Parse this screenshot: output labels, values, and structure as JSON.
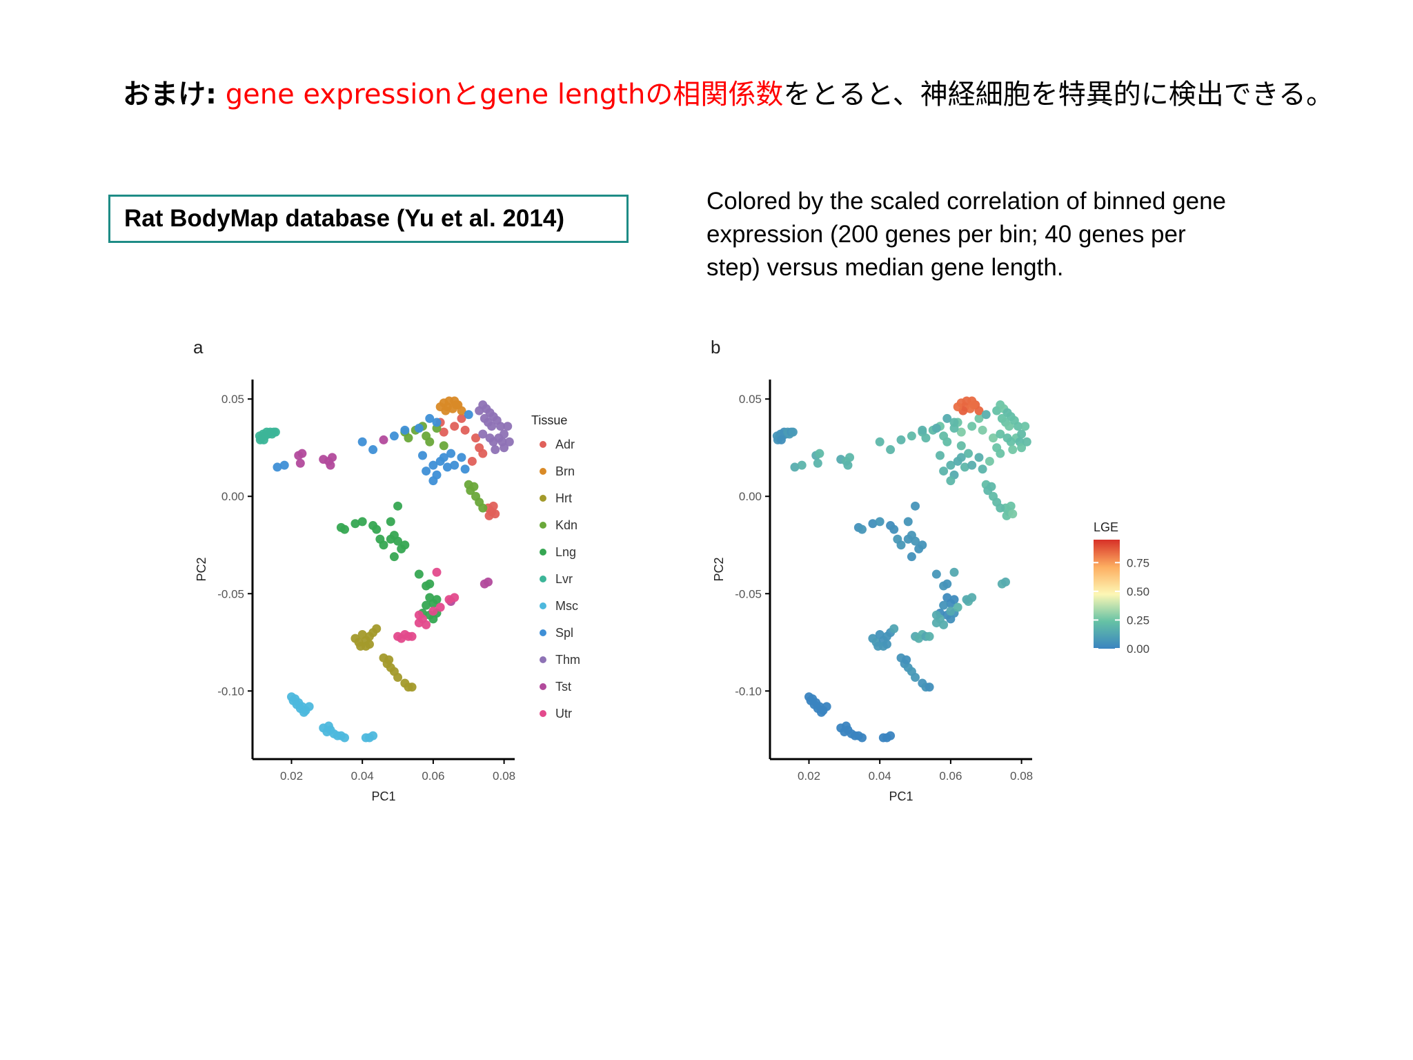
{
  "title": {
    "prefix": "おまけ:",
    "highlight": "gene expressionとgene lengthの相関係数",
    "suffix": "をとると、神経細胞を特異的に検出できる。"
  },
  "source_box": {
    "label": "Rat BodyMap database (Yu et al. 2014)"
  },
  "caption": {
    "text": "Colored by the scaled correlation of binned gene expression (200 genes per bin; 40 genes per step) versus median gene length."
  },
  "colors": {
    "title_highlight": "#ff0000",
    "box_border": "#1e8c86"
  },
  "chart_data": [
    {
      "panel": "a",
      "type": "scatter",
      "xlabel": "PC1",
      "ylabel": "PC2",
      "xlim": [
        0.009,
        0.083
      ],
      "ylim": [
        -0.135,
        0.06
      ],
      "xticks": [
        0.02,
        0.04,
        0.06,
        0.08
      ],
      "xtick_labels": [
        "0.02",
        "0.04",
        "0.06",
        "0.08"
      ],
      "yticks": [
        0.05,
        0.0,
        -0.05,
        -0.1
      ],
      "ytick_labels": [
        "0.05",
        "0.00",
        "-0.05",
        "-0.10"
      ],
      "legend_title": "Tissue",
      "legend_position": "right",
      "series": [
        {
          "name": "Adr",
          "color": "#e0605a",
          "points": [
            [
              0.062,
              0.038
            ],
            [
              0.066,
              0.036
            ],
            [
              0.069,
              0.034
            ],
            [
              0.072,
              0.03
            ],
            [
              0.074,
              0.022
            ],
            [
              0.063,
              0.033
            ],
            [
              0.068,
              0.04
            ],
            [
              0.0755,
              -0.006
            ],
            [
              0.0765,
              -0.008
            ],
            [
              0.0758,
              -0.01
            ],
            [
              0.077,
              -0.005
            ],
            [
              0.0775,
              -0.009
            ],
            [
              0.073,
              0.025
            ],
            [
              0.071,
              0.018
            ]
          ]
        },
        {
          "name": "Brn",
          "color": "#d98a27",
          "points": [
            [
              0.063,
              0.048
            ],
            [
              0.0645,
              0.049
            ],
            [
              0.066,
              0.049
            ],
            [
              0.067,
              0.047
            ],
            [
              0.064,
              0.046
            ],
            [
              0.0655,
              0.045
            ],
            [
              0.068,
              0.044
            ],
            [
              0.0635,
              0.044
            ],
            [
              0.0665,
              0.047
            ],
            [
              0.062,
              0.046
            ]
          ]
        },
        {
          "name": "Hrt",
          "color": "#a39a2b",
          "points": [
            [
              0.038,
              -0.073
            ],
            [
              0.039,
              -0.075
            ],
            [
              0.04,
              -0.071
            ],
            [
              0.041,
              -0.074
            ],
            [
              0.042,
              -0.072
            ],
            [
              0.043,
              -0.07
            ],
            [
              0.0395,
              -0.077
            ],
            [
              0.041,
              -0.077
            ],
            [
              0.044,
              -0.068
            ],
            [
              0.042,
              -0.076
            ],
            [
              0.046,
              -0.083
            ],
            [
              0.047,
              -0.086
            ],
            [
              0.048,
              -0.088
            ],
            [
              0.049,
              -0.09
            ],
            [
              0.05,
              -0.093
            ],
            [
              0.052,
              -0.096
            ],
            [
              0.053,
              -0.098
            ],
            [
              0.054,
              -0.098
            ],
            [
              0.0475,
              -0.084
            ]
          ]
        },
        {
          "name": "Kdn",
          "color": "#6aa83a",
          "points": [
            [
              0.052,
              0.033
            ],
            [
              0.055,
              0.034
            ],
            [
              0.058,
              0.031
            ],
            [
              0.059,
              0.028
            ],
            [
              0.061,
              0.035
            ],
            [
              0.063,
              0.026
            ],
            [
              0.07,
              0.006
            ],
            [
              0.0705,
              0.003
            ],
            [
              0.072,
              0.0
            ],
            [
              0.073,
              -0.003
            ],
            [
              0.0715,
              0.005
            ],
            [
              0.074,
              -0.006
            ],
            [
              0.053,
              0.03
            ],
            [
              0.057,
              0.036
            ]
          ]
        },
        {
          "name": "Lng",
          "color": "#36a652",
          "points": [
            [
              0.034,
              -0.016
            ],
            [
              0.035,
              -0.017
            ],
            [
              0.038,
              -0.014
            ],
            [
              0.04,
              -0.013
            ],
            [
              0.043,
              -0.015
            ],
            [
              0.044,
              -0.017
            ],
            [
              0.045,
              -0.022
            ],
            [
              0.046,
              -0.025
            ],
            [
              0.048,
              -0.013
            ],
            [
              0.049,
              -0.02
            ],
            [
              0.05,
              -0.023
            ],
            [
              0.051,
              -0.027
            ],
            [
              0.05,
              -0.005
            ],
            [
              0.049,
              -0.031
            ],
            [
              0.052,
              -0.025
            ],
            [
              0.048,
              -0.022
            ],
            [
              0.056,
              -0.04
            ],
            [
              0.058,
              -0.046
            ],
            [
              0.059,
              -0.052
            ],
            [
              0.06,
              -0.055
            ],
            [
              0.061,
              -0.053
            ],
            [
              0.058,
              -0.056
            ],
            [
              0.059,
              -0.061
            ],
            [
              0.06,
              -0.063
            ],
            [
              0.057,
              -0.06
            ],
            [
              0.059,
              -0.045
            ],
            [
              0.061,
              -0.06
            ]
          ]
        },
        {
          "name": "Lvr",
          "color": "#3cb598",
          "points": [
            [
              0.011,
              0.031
            ],
            [
              0.0115,
              0.03
            ],
            [
              0.012,
              0.032
            ],
            [
              0.0125,
              0.031
            ],
            [
              0.013,
              0.033
            ],
            [
              0.0135,
              0.032
            ],
            [
              0.014,
              0.033
            ],
            [
              0.0145,
              0.032
            ],
            [
              0.015,
              0.033
            ],
            [
              0.0155,
              0.033
            ],
            [
              0.0112,
              0.029
            ],
            [
              0.0122,
              0.029
            ]
          ]
        },
        {
          "name": "Msc",
          "color": "#4db8dd",
          "points": [
            [
              0.02,
              -0.103
            ],
            [
              0.021,
              -0.104
            ],
            [
              0.022,
              -0.106
            ],
            [
              0.023,
              -0.108
            ],
            [
              0.024,
              -0.11
            ],
            [
              0.0205,
              -0.105
            ],
            [
              0.0215,
              -0.107
            ],
            [
              0.0225,
              -0.109
            ],
            [
              0.0235,
              -0.111
            ],
            [
              0.025,
              -0.108
            ],
            [
              0.029,
              -0.119
            ],
            [
              0.03,
              -0.121
            ],
            [
              0.031,
              -0.12
            ],
            [
              0.032,
              -0.122
            ],
            [
              0.033,
              -0.123
            ],
            [
              0.034,
              -0.123
            ],
            [
              0.035,
              -0.124
            ],
            [
              0.0305,
              -0.118
            ],
            [
              0.041,
              -0.124
            ],
            [
              0.042,
              -0.124
            ],
            [
              0.043,
              -0.123
            ]
          ]
        },
        {
          "name": "Spl",
          "color": "#3e8fd6",
          "points": [
            [
              0.016,
              0.015
            ],
            [
              0.018,
              0.016
            ],
            [
              0.04,
              0.028
            ],
            [
              0.043,
              0.024
            ],
            [
              0.049,
              0.031
            ],
            [
              0.052,
              0.034
            ],
            [
              0.056,
              0.035
            ],
            [
              0.057,
              0.021
            ],
            [
              0.058,
              0.013
            ],
            [
              0.06,
              0.016
            ],
            [
              0.061,
              0.011
            ],
            [
              0.062,
              0.018
            ],
            [
              0.063,
              0.02
            ],
            [
              0.064,
              0.015
            ],
            [
              0.065,
              0.022
            ],
            [
              0.066,
              0.016
            ],
            [
              0.068,
              0.02
            ],
            [
              0.07,
              0.042
            ],
            [
              0.069,
              0.014
            ],
            [
              0.06,
              0.008
            ],
            [
              0.059,
              0.04
            ],
            [
              0.061,
              0.038
            ]
          ]
        },
        {
          "name": "Thm",
          "color": "#8e72b5",
          "points": [
            [
              0.073,
              0.044
            ],
            [
              0.074,
              0.047
            ],
            [
              0.075,
              0.045
            ],
            [
              0.076,
              0.043
            ],
            [
              0.077,
              0.041
            ],
            [
              0.0745,
              0.04
            ],
            [
              0.0755,
              0.038
            ],
            [
              0.0765,
              0.036
            ],
            [
              0.078,
              0.039
            ],
            [
              0.079,
              0.036
            ],
            [
              0.0785,
              0.03
            ],
            [
              0.0795,
              0.028
            ],
            [
              0.08,
              0.032
            ],
            [
              0.077,
              0.028
            ],
            [
              0.081,
              0.036
            ],
            [
              0.08,
              0.025
            ],
            [
              0.0775,
              0.024
            ],
            [
              0.0815,
              0.028
            ],
            [
              0.074,
              0.032
            ],
            [
              0.076,
              0.03
            ]
          ]
        },
        {
          "name": "Tst",
          "color": "#b24a9c",
          "points": [
            [
              0.022,
              0.021
            ],
            [
              0.023,
              0.022
            ],
            [
              0.0225,
              0.017
            ],
            [
              0.029,
              0.019
            ],
            [
              0.0305,
              0.018
            ],
            [
              0.031,
              0.016
            ],
            [
              0.0315,
              0.02
            ],
            [
              0.0745,
              -0.045
            ],
            [
              0.0755,
              -0.044
            ],
            [
              0.046,
              0.029
            ],
            [
              0.065,
              -0.054
            ]
          ]
        },
        {
          "name": "Utr",
          "color": "#e34a8c",
          "points": [
            [
              0.05,
              -0.072
            ],
            [
              0.051,
              -0.073
            ],
            [
              0.052,
              -0.071
            ],
            [
              0.053,
              -0.072
            ],
            [
              0.054,
              -0.072
            ],
            [
              0.056,
              -0.065
            ],
            [
              0.057,
              -0.063
            ],
            [
              0.058,
              -0.066
            ],
            [
              0.06,
              -0.059
            ],
            [
              0.062,
              -0.057
            ],
            [
              0.0645,
              -0.053
            ],
            [
              0.066,
              -0.052
            ],
            [
              0.061,
              -0.039
            ],
            [
              0.056,
              -0.061
            ]
          ]
        }
      ]
    },
    {
      "panel": "b",
      "type": "scatter",
      "xlabel": "PC1",
      "ylabel": "PC2",
      "xlim": [
        0.009,
        0.083
      ],
      "ylim": [
        -0.135,
        0.06
      ],
      "xticks": [
        0.02,
        0.04,
        0.06,
        0.08
      ],
      "xtick_labels": [
        "0.02",
        "0.04",
        "0.06",
        "0.08"
      ],
      "yticks": [
        0.05,
        0.0,
        -0.05,
        -0.1
      ],
      "ytick_labels": [
        "0.05",
        "0.00",
        "-0.05",
        "-0.10"
      ],
      "color_scale": {
        "title": "LGE",
        "range": [
          0,
          0.95
        ],
        "ticks": [
          0.0,
          0.25,
          0.5,
          0.75
        ],
        "tick_labels": [
          "0.00",
          "0.25",
          "0.50",
          "0.75"
        ],
        "stops": [
          "#3a84c0",
          "#66c2a5",
          "#fdf7b5",
          "#fdae61",
          "#d73027"
        ]
      }
    }
  ]
}
